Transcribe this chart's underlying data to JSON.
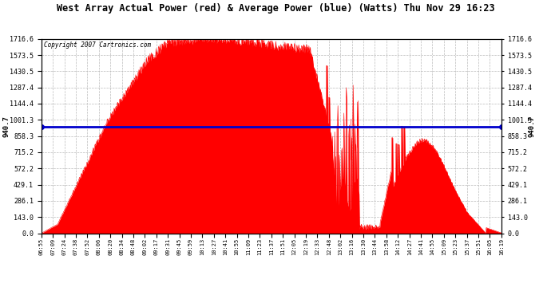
{
  "title": "West Array Actual Power (red) & Average Power (blue) (Watts) Thu Nov 29 16:23",
  "copyright": "Copyright 2007 Cartronics.com",
  "avg_power": 940.7,
  "y_max": 1716.6,
  "y_ticks": [
    0.0,
    143.0,
    286.1,
    429.1,
    572.2,
    715.2,
    858.3,
    1001.3,
    1144.4,
    1287.4,
    1430.5,
    1573.5,
    1716.6
  ],
  "bg_color": "#ffffff",
  "plot_bg_color": "#ffffff",
  "grid_color": "#bbbbbb",
  "fill_color": "#ff0000",
  "avg_line_color": "#0000cc",
  "title_color": "#000000",
  "title_fontsize": 9,
  "x_labels": [
    "06:55",
    "07:09",
    "07:24",
    "07:38",
    "07:52",
    "08:06",
    "08:20",
    "08:34",
    "08:48",
    "09:02",
    "09:17",
    "09:31",
    "09:45",
    "09:59",
    "10:13",
    "10:27",
    "10:41",
    "10:55",
    "11:09",
    "11:23",
    "11:37",
    "11:51",
    "12:05",
    "12:19",
    "12:33",
    "12:48",
    "13:02",
    "13:16",
    "13:30",
    "13:44",
    "13:58",
    "14:12",
    "14:27",
    "14:41",
    "14:55",
    "15:09",
    "15:23",
    "15:37",
    "15:51",
    "16:05",
    "16:19"
  ]
}
